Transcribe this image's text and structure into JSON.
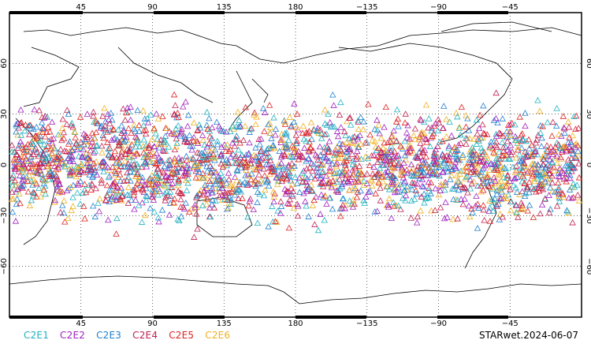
{
  "map": {
    "projection": "cylindrical equidistant, centered on 180",
    "lon_range": [
      0,
      360
    ],
    "lat_range": [
      -90,
      90
    ],
    "grid": "dotted every 45 deg lon / 30 deg lat",
    "top_lon_labels": [
      "45",
      "90",
      "135",
      "180",
      "−135",
      "−90",
      "−45"
    ],
    "bottom_lon_labels": [
      "45",
      "90",
      "135",
      "180",
      "−135",
      "−90",
      "−45"
    ],
    "left_lat_labels": [
      "60",
      "30",
      "0",
      "−30",
      "−60"
    ],
    "right_lat_labels": [
      "60",
      "30",
      "0",
      "−30",
      "−60"
    ],
    "observation_band_lat": [
      -45,
      45
    ],
    "marker_shape": "open triangle"
  },
  "legend": [
    {
      "label": "C2E1",
      "color": "#20b2c0"
    },
    {
      "label": "C2E2",
      "color": "#a020c0"
    },
    {
      "label": "C2E3",
      "color": "#2080d0"
    },
    {
      "label": "C2E4",
      "color": "#c02050"
    },
    {
      "label": "C2E5",
      "color": "#e02020"
    },
    {
      "label": "C2E6",
      "color": "#f0b020"
    }
  ],
  "caption": "STARwet.2024-06-07"
}
